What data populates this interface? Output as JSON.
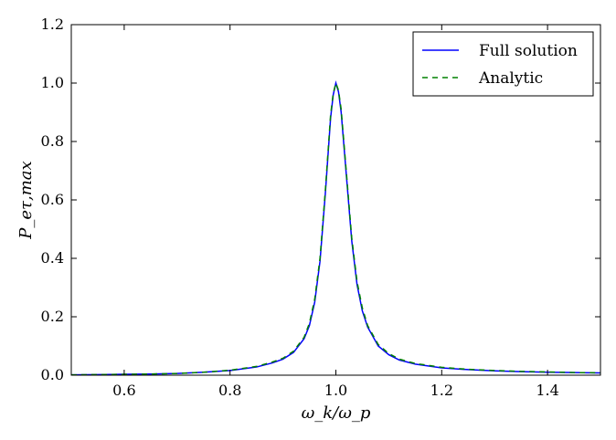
{
  "chart_data": {
    "type": "line",
    "xlabel": "ω_k/ω_p",
    "ylabel": "P_eτ,max",
    "xlim": [
      0.5,
      1.5
    ],
    "ylim": [
      0.0,
      1.2
    ],
    "xticks": [
      "0.6",
      "0.8",
      "1.0",
      "1.2",
      "1.4"
    ],
    "xtick_values": [
      0.6,
      0.8,
      1.0,
      1.2,
      1.4
    ],
    "yticks": [
      "0.0",
      "0.2",
      "0.4",
      "0.6",
      "0.8",
      "1.0",
      "1.2"
    ],
    "ytick_values": [
      0.0,
      0.2,
      0.4,
      0.6,
      0.8,
      1.0,
      1.2
    ],
    "grid": false,
    "legend_position": "top-right",
    "series": [
      {
        "name": "Full solution",
        "color": "#0000ff",
        "style": "solid",
        "x": [
          0.5,
          0.55,
          0.6,
          0.65,
          0.7,
          0.75,
          0.8,
          0.85,
          0.88,
          0.9,
          0.92,
          0.94,
          0.95,
          0.96,
          0.97,
          0.98,
          0.99,
          0.995,
          1.0,
          1.005,
          1.01,
          1.02,
          1.03,
          1.04,
          1.05,
          1.06,
          1.08,
          1.1,
          1.12,
          1.15,
          1.2,
          1.25,
          1.3,
          1.35,
          1.4,
          1.45,
          1.5
        ],
        "y": [
          0.001,
          0.002,
          0.003,
          0.004,
          0.006,
          0.01,
          0.016,
          0.028,
          0.042,
          0.055,
          0.078,
          0.125,
          0.17,
          0.25,
          0.39,
          0.62,
          0.88,
          0.96,
          1.0,
          0.97,
          0.9,
          0.68,
          0.46,
          0.31,
          0.22,
          0.165,
          0.1,
          0.07,
          0.052,
          0.038,
          0.025,
          0.019,
          0.015,
          0.012,
          0.01,
          0.009,
          0.008
        ]
      },
      {
        "name": "Analytic",
        "color": "#008000",
        "style": "dashed",
        "x": [
          0.5,
          0.55,
          0.6,
          0.65,
          0.7,
          0.75,
          0.8,
          0.85,
          0.88,
          0.9,
          0.92,
          0.94,
          0.95,
          0.96,
          0.97,
          0.98,
          0.99,
          0.995,
          1.0,
          1.005,
          1.01,
          1.02,
          1.03,
          1.04,
          1.05,
          1.06,
          1.08,
          1.1,
          1.12,
          1.15,
          1.2,
          1.25,
          1.3,
          1.35,
          1.4,
          1.45,
          1.5
        ],
        "y": [
          0.001,
          0.002,
          0.003,
          0.004,
          0.006,
          0.01,
          0.017,
          0.03,
          0.045,
          0.058,
          0.082,
          0.13,
          0.178,
          0.26,
          0.4,
          0.63,
          0.89,
          0.965,
          1.0,
          0.975,
          0.91,
          0.69,
          0.47,
          0.32,
          0.23,
          0.17,
          0.105,
          0.074,
          0.055,
          0.04,
          0.027,
          0.02,
          0.016,
          0.013,
          0.011,
          0.009,
          0.008
        ]
      }
    ]
  }
}
